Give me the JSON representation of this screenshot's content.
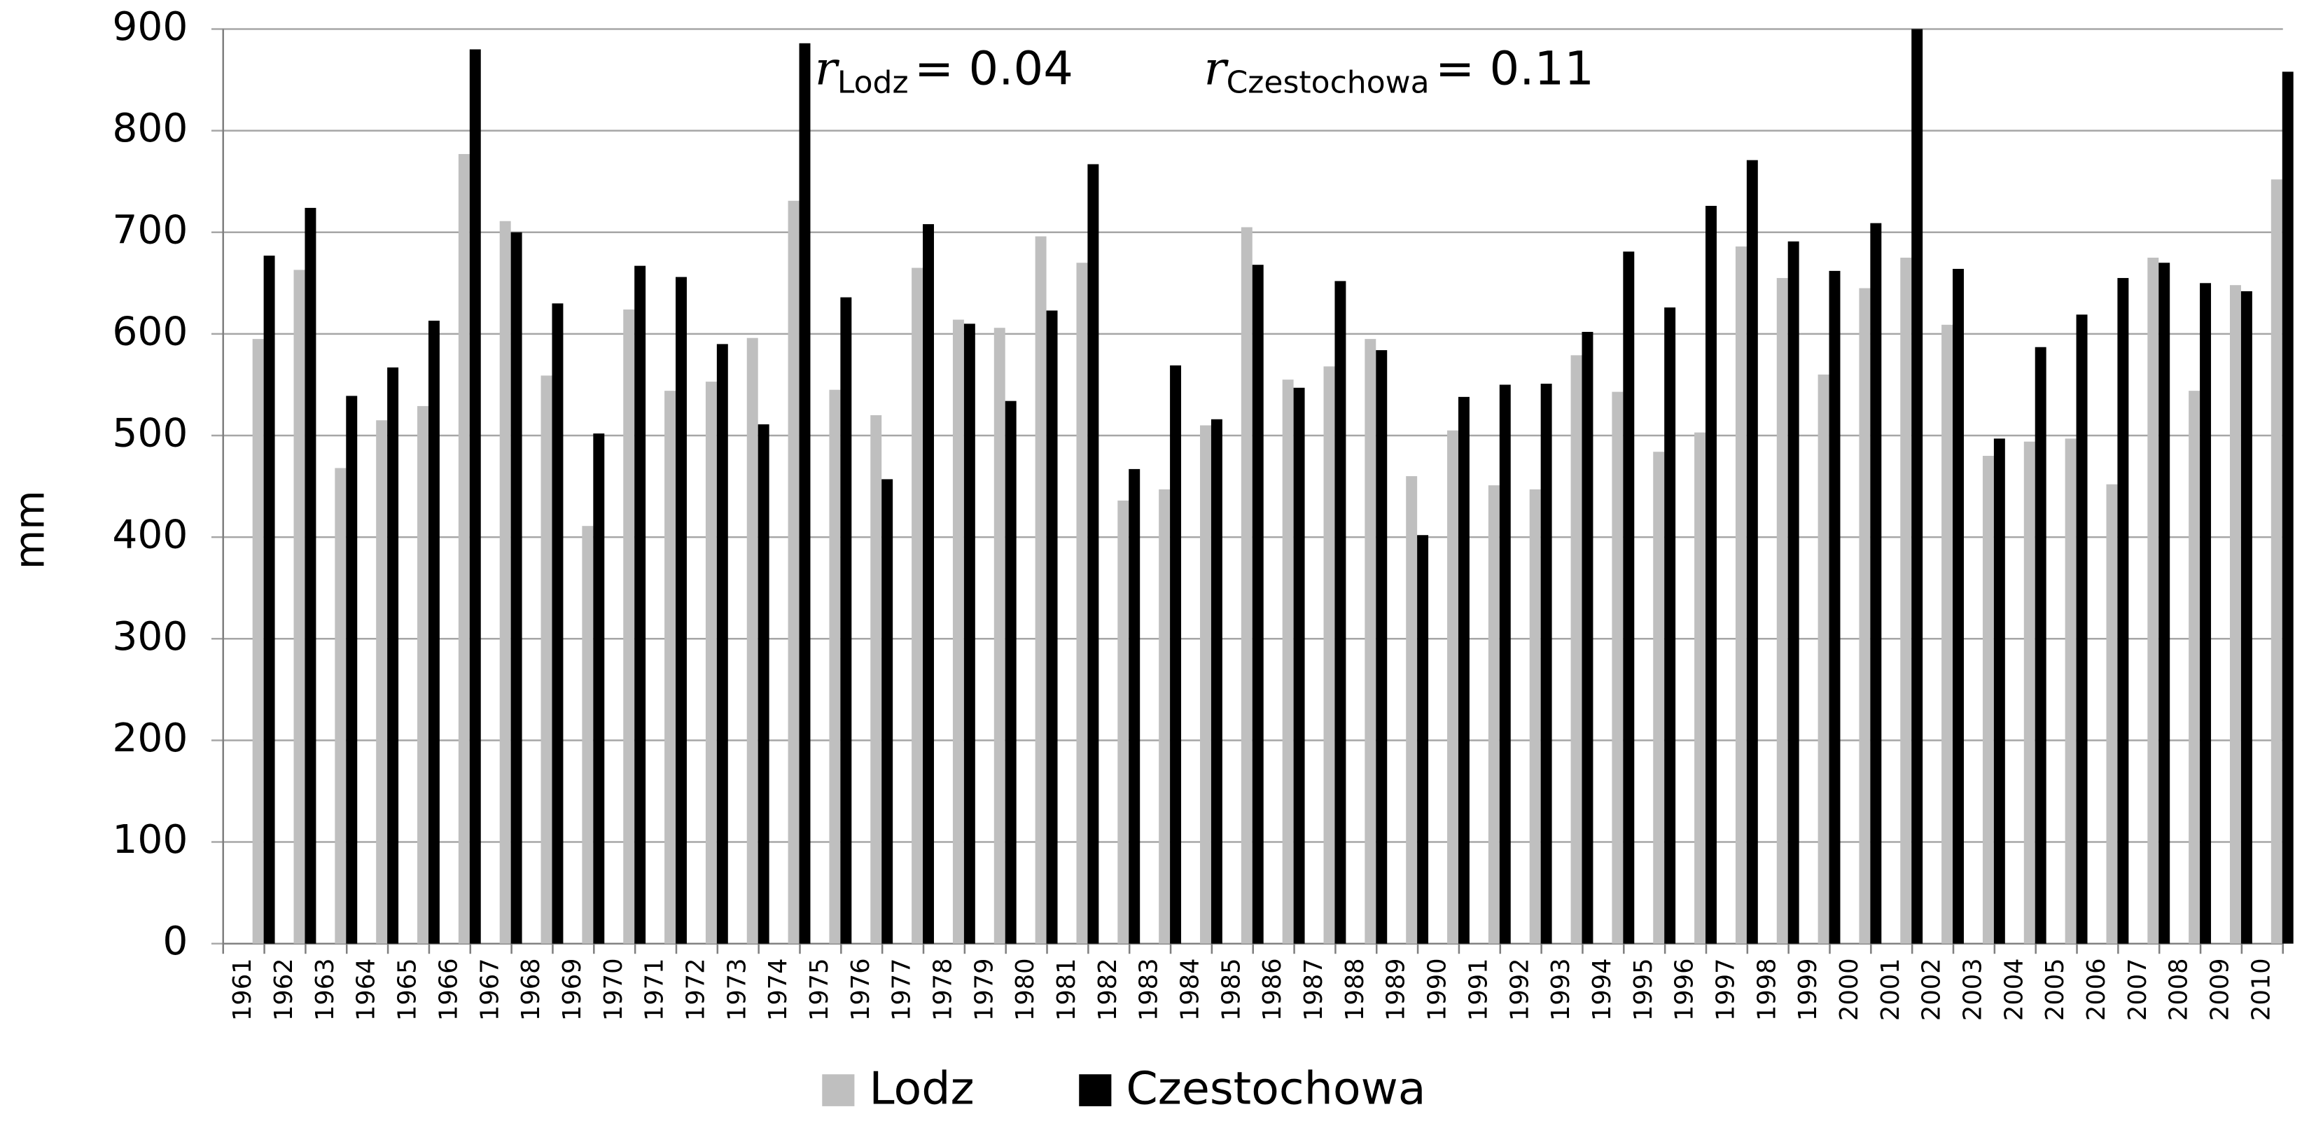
{
  "chart_data": {
    "type": "bar",
    "y_label": "mm",
    "categories": [
      "1961",
      "1962",
      "1963",
      "1964",
      "1965",
      "1966",
      "1967",
      "1968",
      "1969",
      "1970",
      "1971",
      "1972",
      "1973",
      "1974",
      "1975",
      "1976",
      "1977",
      "1978",
      "1979",
      "1980",
      "1981",
      "1982",
      "1983",
      "1984",
      "1985",
      "1986",
      "1987",
      "1988",
      "1989",
      "1990",
      "1991",
      "1992",
      "1993",
      "1994",
      "1995",
      "1996",
      "1997",
      "1998",
      "1999",
      "2000",
      "2001",
      "2002",
      "2003",
      "2004",
      "2005",
      "2006",
      "2007",
      "2008",
      "2009",
      "2010"
    ],
    "series": [
      {
        "name": "Lodz",
        "color": "#bfbfbf",
        "values": [
          595,
          663,
          468,
          515,
          529,
          777,
          711,
          559,
          411,
          624,
          544,
          553,
          596,
          731,
          545,
          520,
          665,
          614,
          606,
          696,
          670,
          436,
          447,
          510,
          705,
          555,
          568,
          595,
          460,
          505,
          451,
          447,
          579,
          543,
          484,
          503,
          686,
          655,
          560,
          645,
          675,
          609,
          480,
          494,
          497,
          452,
          675,
          544,
          648,
          752
        ]
      },
      {
        "name": "Czestochowa",
        "color": "#000000",
        "values": [
          677,
          724,
          539,
          567,
          613,
          880,
          700,
          630,
          502,
          667,
          656,
          590,
          511,
          886,
          636,
          457,
          708,
          610,
          534,
          623,
          767,
          467,
          569,
          516,
          668,
          547,
          652,
          584,
          402,
          538,
          550,
          551,
          602,
          681,
          626,
          726,
          771,
          691,
          662,
          709,
          900,
          664,
          497,
          587,
          619,
          655,
          670,
          650,
          642,
          858
        ]
      }
    ],
    "ylim": [
      0,
      900
    ],
    "yticks": [
      0,
      100,
      200,
      300,
      400,
      500,
      600,
      700,
      800,
      900
    ],
    "grid": true,
    "legend": "bottom",
    "annotations": [
      {
        "symbol": "r",
        "subscript": "Lodz",
        "text": "= 0.04"
      },
      {
        "symbol": "r",
        "subscript": "Czestochowa",
        "text": "= 0.11"
      }
    ]
  }
}
